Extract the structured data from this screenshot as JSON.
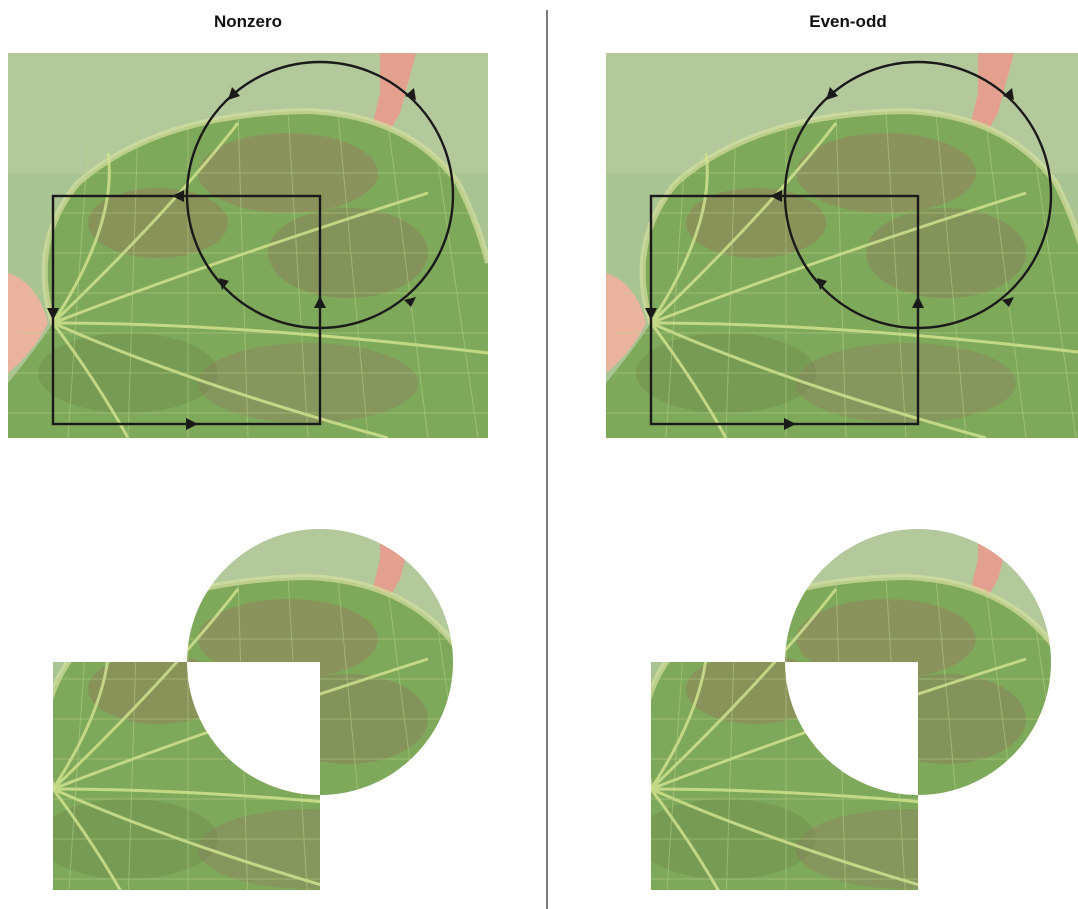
{
  "panels": [
    {
      "title": "Nonzero",
      "fill_rule": "nonzero"
    },
    {
      "title": "Even-odd",
      "fill_rule": "evenodd"
    }
  ],
  "colors": {
    "stroke": "#1a1a1a",
    "divider": "#222222",
    "background": "#ffffff",
    "leaf_green": "#7ea85a",
    "leaf_dark": "#5f8a3f",
    "leaf_red": "#9a6a55",
    "vein": "#c8dc8a",
    "backdrop_green": "#a7c08e",
    "stem_pink": "#e4a08e",
    "blossom": "#e9b39e"
  },
  "icons": [
    "arrowhead-icon"
  ]
}
